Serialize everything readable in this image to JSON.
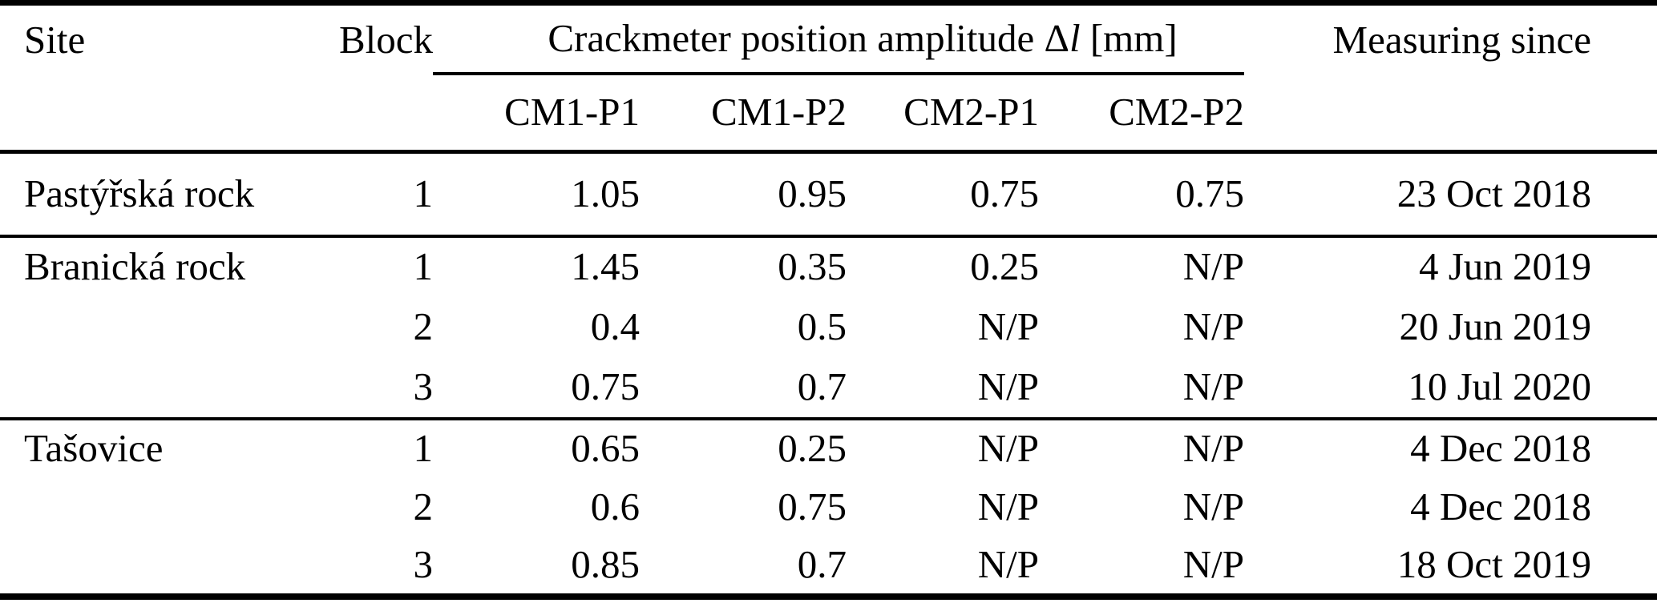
{
  "page": {
    "background_color": "#ffffff",
    "text_color": "#000000"
  },
  "table": {
    "header": {
      "site": "Site",
      "block": "Block",
      "group": {
        "prefix": "Crackmeter position amplitude Δ",
        "symbol": "l",
        "suffix": " [mm]"
      },
      "subcolumns": [
        "CM1-P1",
        "CM1-P2",
        "CM2-P1",
        "CM2-P2"
      ],
      "measuring_since": "Measuring since"
    },
    "rows": [
      {
        "site": "Pastýřská rock",
        "block": "1",
        "cm1p1": "1.05",
        "cm1p2": "0.95",
        "cm2p1": "0.75",
        "cm2p2": "0.75",
        "since": "23 Oct 2018"
      },
      {
        "site": "Branická rock",
        "block": "1",
        "cm1p1": "1.45",
        "cm1p2": "0.35",
        "cm2p1": "0.25",
        "cm2p2": "N/P",
        "since": "4 Jun 2019"
      },
      {
        "site": "",
        "block": "2",
        "cm1p1": "0.4",
        "cm1p2": "0.5",
        "cm2p1": "N/P",
        "cm2p2": "N/P",
        "since": "20 Jun 2019"
      },
      {
        "site": "",
        "block": "3",
        "cm1p1": "0.75",
        "cm1p2": "0.7",
        "cm2p1": "N/P",
        "cm2p2": "N/P",
        "since": "10 Jul 2020"
      },
      {
        "site": "Tašovice",
        "block": "1",
        "cm1p1": "0.65",
        "cm1p2": "0.25",
        "cm2p1": "N/P",
        "cm2p2": "N/P",
        "since": "4 Dec 2018"
      },
      {
        "site": "",
        "block": "2",
        "cm1p1": "0.6",
        "cm1p2": "0.75",
        "cm2p1": "N/P",
        "cm2p2": "N/P",
        "since": "4 Dec 2018"
      },
      {
        "site": "",
        "block": "3",
        "cm1p1": "0.85",
        "cm1p2": "0.7",
        "cm2p1": "N/P",
        "cm2p2": "N/P",
        "since": "18 Oct 2019"
      }
    ]
  }
}
